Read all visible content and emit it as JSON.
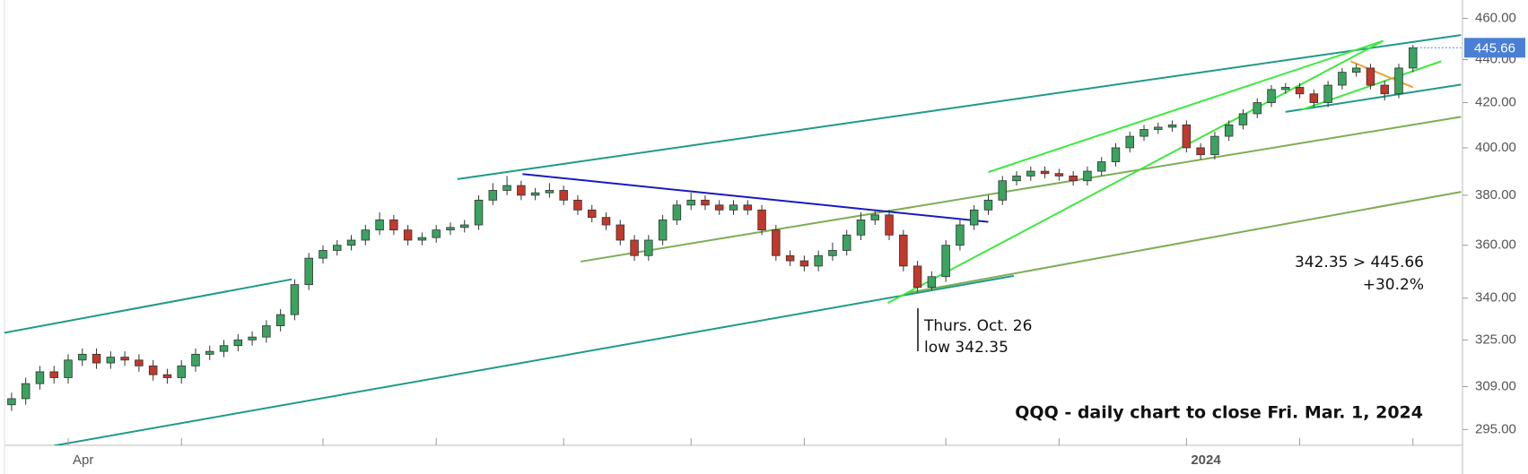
{
  "chart_data": {
    "type": "candlestick",
    "title": "QQQ - daily chart to close Fri. Mar. 1, 2024",
    "annotations": [
      "Thurs. Oct. 26",
      "low 342.35",
      "342.35 > 445.66",
      "+30.2%"
    ],
    "categories": [
      null,
      null,
      null,
      null,
      "Apr",
      null,
      null,
      null,
      null,
      null,
      null,
      null,
      null,
      null,
      null,
      null,
      null,
      null,
      null,
      null,
      null,
      null,
      null,
      null,
      null,
      null,
      null,
      null,
      null,
      null,
      null,
      null,
      null,
      null,
      null,
      null,
      null,
      null,
      null,
      null,
      null,
      null,
      null,
      null,
      null,
      null,
      null,
      null,
      null,
      null,
      null,
      null,
      null,
      null,
      null,
      null,
      null,
      null,
      null,
      null,
      null,
      null,
      null,
      null,
      null,
      null,
      null,
      null,
      null,
      null,
      null,
      null,
      null,
      null,
      null,
      null,
      null,
      null,
      null,
      null,
      null,
      null,
      null,
      "2024",
      null,
      null,
      null,
      null,
      null,
      null,
      null,
      null,
      null,
      null,
      null,
      null,
      null,
      null,
      null,
      null
    ],
    "xlim": [
      -0.5,
      102.5
    ],
    "xticks": [
      4,
      12,
      22,
      30,
      39,
      48,
      56,
      66,
      74,
      83,
      91,
      99
    ],
    "open": [
      303,
      305,
      310,
      314,
      312,
      318,
      320,
      317,
      319,
      318,
      316,
      313,
      312,
      316,
      320,
      321,
      323,
      325,
      326,
      330,
      334,
      345,
      355,
      358,
      360,
      362,
      366,
      370,
      366,
      362,
      363,
      366,
      367,
      368,
      378,
      382,
      384,
      380,
      381,
      382,
      378,
      374,
      371,
      368,
      362,
      356,
      362,
      370,
      376,
      378,
      376,
      374,
      376,
      374,
      366,
      356,
      354,
      352,
      356,
      358,
      364,
      370,
      372,
      364,
      352,
      344,
      348,
      360,
      368,
      374,
      378,
      386,
      388,
      390,
      389,
      388,
      386,
      390,
      394,
      400,
      405,
      408,
      409,
      410,
      400,
      397,
      405,
      410,
      415,
      420,
      426,
      427,
      424,
      420,
      428,
      434,
      436,
      428,
      424,
      436
    ],
    "high": [
      307,
      312,
      316,
      316,
      320,
      322,
      322,
      321,
      321,
      320,
      318,
      315,
      318,
      322,
      323,
      325,
      327,
      328,
      332,
      336,
      347,
      357,
      360,
      362,
      364,
      368,
      373,
      372,
      368,
      365,
      368,
      369,
      370,
      380,
      385,
      388,
      386,
      383,
      385,
      384,
      380,
      376,
      373,
      370,
      364,
      364,
      372,
      378,
      381,
      380,
      378,
      378,
      378,
      376,
      368,
      358,
      356,
      358,
      361,
      366,
      373,
      374,
      374,
      366,
      354,
      350,
      362,
      370,
      376,
      380,
      388,
      390,
      392,
      392,
      391,
      390,
      392,
      396,
      402,
      407,
      410,
      411,
      412,
      412,
      402,
      407,
      412,
      417,
      422,
      428,
      429,
      429,
      426,
      430,
      436,
      438,
      438,
      430,
      438,
      447
    ],
    "low": [
      301,
      303,
      308,
      310,
      310,
      316,
      315,
      315,
      316,
      314,
      311,
      310,
      310,
      314,
      318,
      319,
      321,
      323,
      324,
      328,
      332,
      343,
      353,
      356,
      358,
      360,
      364,
      364,
      360,
      360,
      361,
      364,
      365,
      366,
      376,
      380,
      378,
      378,
      379,
      376,
      372,
      369,
      366,
      360,
      354,
      354,
      360,
      368,
      374,
      374,
      372,
      372,
      372,
      364,
      354,
      352,
      350,
      350,
      354,
      356,
      362,
      368,
      362,
      350,
      342.35,
      343,
      346,
      358,
      366,
      372,
      376,
      384,
      386,
      387,
      386,
      384,
      384,
      388,
      392,
      398,
      403,
      406,
      407,
      398,
      395,
      395,
      403,
      408,
      413,
      418,
      424,
      422,
      418,
      418,
      426,
      432,
      426,
      421,
      422,
      434
    ],
    "close": [
      305,
      310,
      314,
      312,
      318,
      320,
      317,
      319,
      318,
      316,
      313,
      312,
      316,
      320,
      321,
      323,
      325,
      326,
      330,
      334,
      345,
      355,
      358,
      360,
      362,
      366,
      370,
      366,
      362,
      363,
      366,
      367,
      368,
      378,
      382,
      384,
      380,
      381,
      382,
      378,
      374,
      371,
      368,
      362,
      356,
      362,
      370,
      376,
      378,
      376,
      374,
      376,
      374,
      366,
      356,
      354,
      352,
      356,
      358,
      364,
      370,
      372,
      364,
      352,
      344,
      348,
      360,
      368,
      374,
      378,
      386,
      388,
      390,
      389,
      388,
      386,
      390,
      394,
      400,
      405,
      408,
      409,
      410,
      400,
      397,
      405,
      410,
      415,
      420,
      426,
      427,
      424,
      420,
      428,
      434,
      436,
      428,
      424,
      436,
      445.66
    ],
    "up_color": "#3aa35f",
    "down_color": "#c0392b",
    "ylim": [
      290,
      467
    ],
    "log_scale": true,
    "yticks": [
      {
        "value": 295,
        "label": "295.00"
      },
      {
        "value": 309,
        "label": "309.00"
      },
      {
        "value": 325,
        "label": "325.00"
      },
      {
        "value": 340,
        "label": "340.00"
      },
      {
        "value": 360,
        "label": "360.00"
      },
      {
        "value": 380,
        "label": "380.00"
      },
      {
        "value": 400,
        "label": "400.00"
      },
      {
        "value": 420,
        "label": "420.00"
      },
      {
        "value": 440,
        "label": "440.00"
      },
      {
        "value": 460,
        "label": "460.00"
      }
    ],
    "price_label_color": "#4a7fd4",
    "trend_lines": [
      {
        "color": "#1f9a88",
        "x": [
          31.5,
          102.4
        ],
        "y": [
          386.7,
          451.8
        ]
      },
      {
        "color": "#1f9a88",
        "x": [
          -0.5,
          19.8
        ],
        "y": [
          327.5,
          347.0
        ]
      },
      {
        "color": "#1f9a88",
        "x": [
          3.0,
          70.8
        ],
        "y": [
          289.9,
          348.3
        ]
      },
      {
        "color": "#1f9a88",
        "x": [
          90.0,
          102.4
        ],
        "y": [
          415.8,
          428.3
        ]
      },
      {
        "color": "#7cae55",
        "x": [
          40.2,
          102.4
        ],
        "y": [
          353.7,
          413.6
        ]
      },
      {
        "color": "#7cae55",
        "x": [
          63.2,
          102.4
        ],
        "y": [
          341.8,
          381.4
        ]
      },
      {
        "color": "#1a1abf",
        "x": [
          36.1,
          69.0
        ],
        "y": [
          388.8,
          369.2
        ]
      },
      {
        "color": "#3fe83f",
        "x": [
          61.9,
          96.9
        ],
        "y": [
          338.2,
          449.0
        ]
      },
      {
        "color": "#3fe83f",
        "x": [
          69.0,
          96.9
        ],
        "y": [
          389.6,
          449.0
        ]
      },
      {
        "color": "#3fe83f",
        "x": [
          91.1,
          101.0
        ],
        "y": [
          416.7,
          439.2
        ]
      },
      {
        "color": "#f0a030",
        "x": [
          94.6,
          99.0
        ],
        "y": [
          439.2,
          427.0
        ]
      }
    ]
  }
}
